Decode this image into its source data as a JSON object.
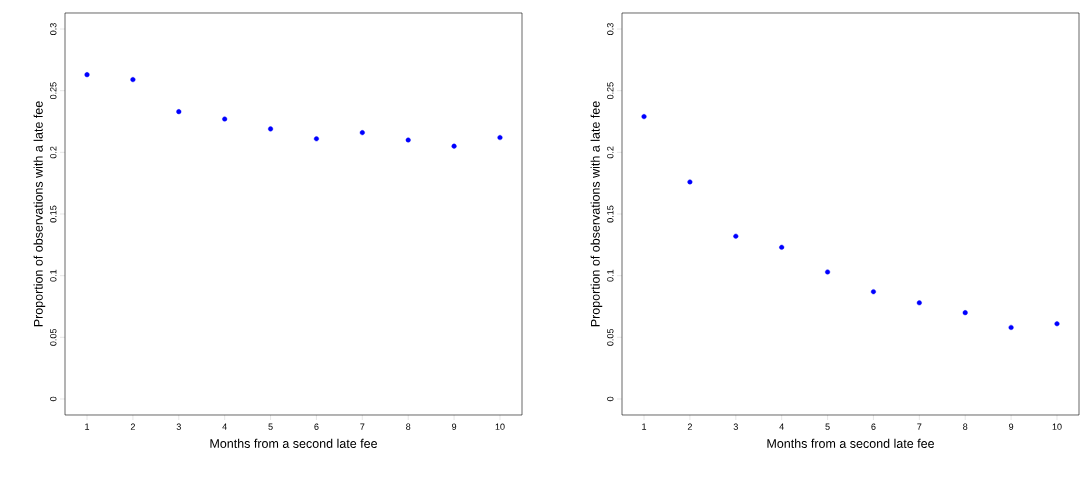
{
  "chart_data": [
    {
      "type": "scatter",
      "xlabel": "Months from a second late fee",
      "ylabel": "Proportion of observations with a late fee",
      "x": [
        1,
        2,
        3,
        4,
        5,
        6,
        7,
        8,
        9,
        10
      ],
      "values": [
        0.263,
        0.259,
        0.233,
        0.227,
        0.219,
        0.211,
        0.216,
        0.21,
        0.205,
        0.212
      ],
      "color": "#0000ff",
      "marker": "circle",
      "xlim": [
        0.52,
        10.48
      ],
      "ylim": [
        -0.013,
        0.313
      ],
      "xticks": [
        1,
        2,
        3,
        4,
        5,
        6,
        7,
        8,
        9,
        10
      ],
      "yticks": [
        0,
        0.05,
        0.1,
        0.15,
        0.2,
        0.25,
        0.3
      ]
    },
    {
      "type": "scatter",
      "xlabel": "Months from a second late fee",
      "ylabel": "Proportion of observations with a late fee",
      "x": [
        1,
        2,
        3,
        4,
        5,
        6,
        7,
        8,
        9,
        10
      ],
      "values": [
        0.229,
        0.176,
        0.132,
        0.123,
        0.103,
        0.087,
        0.078,
        0.07,
        0.058,
        0.061
      ],
      "color": "#0000ff",
      "marker": "circle",
      "xlim": [
        0.52,
        10.48
      ],
      "ylim": [
        -0.013,
        0.313
      ],
      "xticks": [
        1,
        2,
        3,
        4,
        5,
        6,
        7,
        8,
        9,
        10
      ],
      "yticks": [
        0,
        0.05,
        0.1,
        0.15,
        0.2,
        0.25,
        0.3
      ]
    }
  ]
}
